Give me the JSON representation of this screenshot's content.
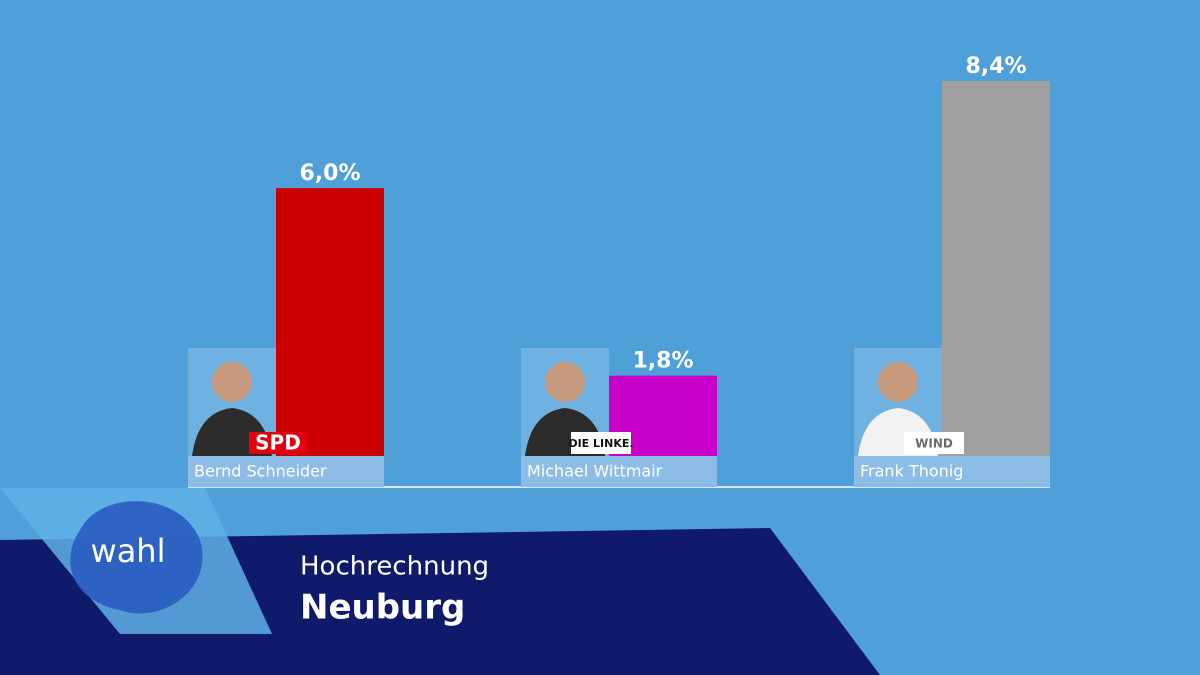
{
  "brand": "wahl",
  "subtitle": "Hochrechnung",
  "title": "Neuburg",
  "chart_data": {
    "type": "bar",
    "categories": [
      "Bernd Schneider",
      "Michael Wittmair",
      "Frank Thonig"
    ],
    "parties": [
      "SPD",
      "DIE LINKE.",
      "WIND"
    ],
    "values": [
      6.0,
      1.8,
      8.4
    ],
    "value_labels": [
      "6,0%",
      "1,8%",
      "8,4%"
    ],
    "colors": [
      "#cc0000",
      "#c800c8",
      "#a0a0a0"
    ]
  }
}
